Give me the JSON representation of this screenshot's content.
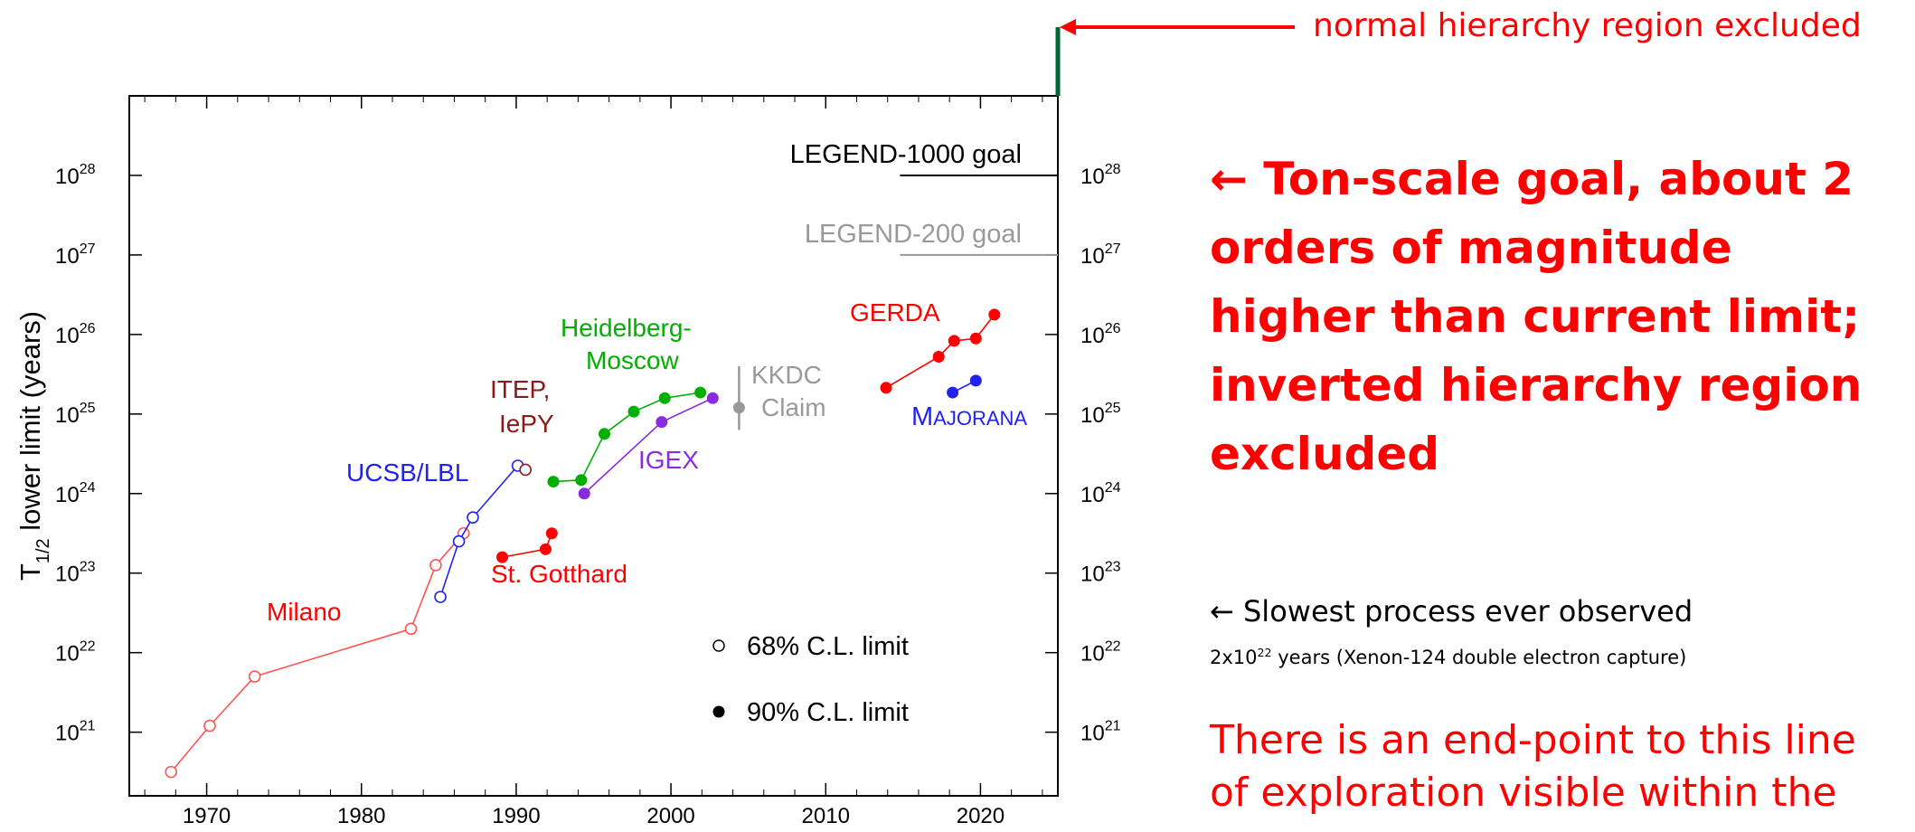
{
  "annotations": {
    "top_label": "normal hierarchy region excluded",
    "ton_scale": "← Ton-scale goal, about 2 orders of magnitude higher than current limit; inverted hierarchy region excluded",
    "slowest_line": "← Slowest process ever observed",
    "slowest_sub_prefix": "2x10",
    "slowest_sub_exp": "22",
    "slowest_sub_suffix": " years (Xenon-124 double electron capture)",
    "endpoint": "There is an end-point to this line of exploration visible within the"
  },
  "colors": {
    "red": "#ff0000",
    "blue": "#2222ee",
    "green": "#00b000",
    "purple": "#8a2be2",
    "dark_red": "#8b1a1a",
    "gray": "#999999",
    "dark_green": "#006633",
    "milano_line": "#ff5555"
  },
  "chart_data": {
    "type": "scatter",
    "xlabel": "",
    "ylabel": "T",
    "ylabel_sub": "1/2",
    "ylabel_rest": " lower limit (years)",
    "xlim": [
      1965,
      2025
    ],
    "ylim_log10": [
      20.2,
      29
    ],
    "x_ticks": [
      1970,
      1980,
      1990,
      2000,
      2010,
      2020
    ],
    "x_tick_labels": [
      "1970",
      "1980",
      "1990",
      "2000",
      "2010",
      "2020"
    ],
    "y_ticks_exp": [
      21,
      22,
      23,
      24,
      25,
      26,
      27,
      28
    ],
    "y_tick_base": "10",
    "series": [
      {
        "name": "Milano",
        "color_key": "red",
        "marker": "open",
        "x": [
          1967.7,
          1970.2,
          1973.1,
          1983.2,
          1984.8,
          1986.6
        ],
        "log10y": [
          20.5,
          21.08,
          21.7,
          22.3,
          23.1,
          23.5
        ]
      },
      {
        "name": "UCSB/LBL",
        "color_key": "blue",
        "marker": "open",
        "x": [
          1985.1,
          1986.3,
          1987.2,
          1990.1
        ],
        "log10y": [
          22.7,
          23.4,
          23.7,
          24.35
        ]
      },
      {
        "name": "ITEP, IePY",
        "color_key": "dark_red",
        "marker": "open",
        "x": [
          1990.6
        ],
        "log10y": [
          24.3
        ]
      },
      {
        "name": "St. Gotthard",
        "color_key": "red",
        "marker": "filled",
        "x": [
          1989.1,
          1991.9,
          1992.3
        ],
        "log10y": [
          23.2,
          23.3,
          23.5
        ]
      },
      {
        "name": "Heidelberg-Moscow",
        "color_key": "green",
        "marker": "filled",
        "x": [
          1992.4,
          1994.2,
          1995.7,
          1997.6,
          1999.6,
          2001.9
        ],
        "log10y": [
          24.15,
          24.17,
          24.75,
          25.03,
          25.2,
          25.27
        ]
      },
      {
        "name": "IGEX",
        "color_key": "purple",
        "marker": "filled",
        "x": [
          1994.4,
          1999.4,
          2002.7
        ],
        "log10y": [
          24.0,
          24.9,
          25.2
        ]
      },
      {
        "name": "GERDA",
        "color_key": "red",
        "marker": "filled",
        "x": [
          2013.9,
          2017.3,
          2018.3,
          2019.7,
          2020.9
        ],
        "log10y": [
          25.33,
          25.72,
          25.92,
          25.95,
          26.25
        ]
      },
      {
        "name": "MAJORANA",
        "color_key": "blue",
        "marker": "filled",
        "x": [
          2018.2,
          2019.7
        ],
        "log10y": [
          25.27,
          25.42
        ]
      }
    ],
    "kkdc": {
      "x": 2004.4,
      "log10y": 25.08,
      "log10y_lo": 24.8,
      "log10y_hi": 25.6,
      "label_line1": "KKDC",
      "label_line2": "Claim"
    },
    "goals": [
      {
        "label": "LEGEND-1000 goal",
        "log10y": 28,
        "x_start": 2014.8,
        "color_key": "black"
      },
      {
        "label": "LEGEND-200 goal",
        "log10y": 27,
        "x_start": 2014.8,
        "color_key": "gray"
      }
    ],
    "series_labels": {
      "milano": "Milano",
      "ucsb": "UCSB/LBL",
      "itep_1": "ITEP,",
      "itep_2": "IePY",
      "gotthard": "St. Gotthard",
      "hm_1": "Heidelberg-",
      "hm_2": "Moscow",
      "igex": "IGEX",
      "gerda": "GERDA",
      "majorana_cap1": "M",
      "majorana_rest": "AJORANA"
    },
    "legend": [
      {
        "marker": "open",
        "label": "68% C.L. limit"
      },
      {
        "marker": "filled",
        "label": "90% C.L. limit"
      }
    ],
    "legend_position": "bottom-right",
    "grid": false
  }
}
